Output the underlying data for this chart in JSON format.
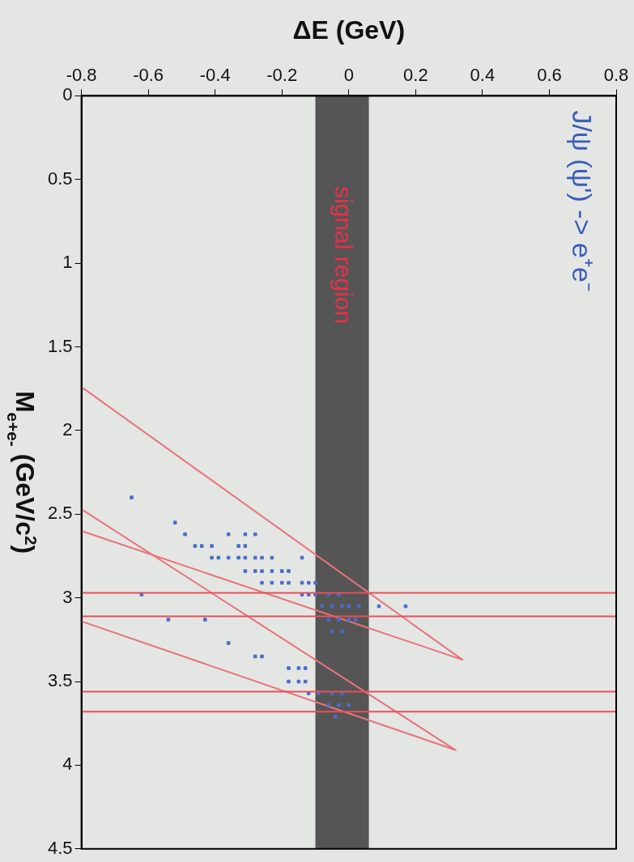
{
  "chart_data": {
    "type": "scatter",
    "xlabel": "ΔE (GeV)",
    "ylabel": "M$_{e+e-}$ (GeV/c$^{2}$)",
    "xlim": [
      -0.8,
      0.8
    ],
    "xticks": [
      -0.8,
      -0.6,
      -0.4,
      -0.2,
      0,
      0.2,
      0.4,
      0.6,
      0.8
    ],
    "ylim": [
      4.5,
      0
    ],
    "yticks": [
      0,
      0.5,
      1,
      1.5,
      2,
      2.5,
      3,
      3.5,
      4,
      4.5
    ],
    "grid": false,
    "legend": false,
    "annotations": [
      "J/ψ (ψ') -> e⁺e⁻"
    ],
    "bands": [
      {
        "axis": "x",
        "from": -0.1,
        "to": 0.06,
        "label": "signal region",
        "color": "#555555"
      }
    ],
    "ref_lines": [
      {
        "axis": "y",
        "value": 2.97,
        "color": "#e8505a"
      },
      {
        "axis": "y",
        "value": 3.11,
        "color": "#e8505a"
      },
      {
        "axis": "y",
        "value": 3.56,
        "color": "#e8505a"
      },
      {
        "axis": "y",
        "value": 3.68,
        "color": "#e8505a"
      }
    ],
    "series": [
      {
        "type": "scatter",
        "color": "#4a6cc8",
        "marker": "square",
        "x": [
          -0.65,
          -0.52,
          -0.49,
          -0.36,
          -0.31,
          -0.28,
          -0.46,
          -0.44,
          -0.41,
          -0.33,
          -0.31,
          -0.41,
          -0.39,
          -0.36,
          -0.33,
          -0.31,
          -0.28,
          -0.26,
          -0.23,
          -0.14,
          -0.31,
          -0.28,
          -0.26,
          -0.23,
          -0.2,
          -0.18,
          -0.26,
          -0.23,
          -0.2,
          -0.18,
          -0.14,
          -0.12,
          -0.1,
          -0.62,
          -0.14,
          -0.12,
          -0.1,
          -0.06,
          -0.03,
          -0.08,
          -0.05,
          -0.02,
          0,
          0.03,
          0.09,
          0.17,
          -0.54,
          -0.43,
          -0.06,
          -0.03,
          0,
          0.02,
          -0.05,
          -0.02,
          -0.36,
          -0.28,
          -0.26,
          -0.18,
          -0.15,
          -0.13,
          -0.18,
          -0.15,
          -0.13,
          -0.12,
          -0.09,
          -0.05,
          -0.02,
          -0.06,
          -0.03,
          0,
          -0.04
        ],
        "values": [
          2.4,
          2.55,
          2.62,
          2.62,
          2.62,
          2.62,
          2.69,
          2.69,
          2.69,
          2.69,
          2.69,
          2.76,
          2.76,
          2.76,
          2.76,
          2.76,
          2.76,
          2.76,
          2.76,
          2.76,
          2.84,
          2.84,
          2.84,
          2.84,
          2.84,
          2.84,
          2.91,
          2.91,
          2.91,
          2.91,
          2.91,
          2.91,
          2.91,
          2.98,
          2.98,
          2.98,
          2.98,
          2.98,
          2.98,
          3.05,
          3.05,
          3.05,
          3.05,
          3.05,
          3.05,
          3.05,
          3.13,
          3.13,
          3.13,
          3.13,
          3.13,
          3.13,
          3.2,
          3.2,
          3.27,
          3.35,
          3.35,
          3.42,
          3.42,
          3.42,
          3.5,
          3.5,
          3.5,
          3.57,
          3.57,
          3.57,
          3.57,
          3.64,
          3.64,
          3.64,
          3.71
        ]
      },
      {
        "type": "line",
        "color": "#e8737a",
        "marker": "none",
        "x": [
          -0.8,
          0.34,
          -0.8
        ],
        "values": [
          1.74,
          3.37,
          2.6
        ]
      },
      {
        "type": "line",
        "color": "#e8737a",
        "marker": "none",
        "x": [
          -0.8,
          0.32,
          -0.8
        ],
        "values": [
          2.47,
          3.91,
          3.14
        ]
      }
    ]
  }
}
